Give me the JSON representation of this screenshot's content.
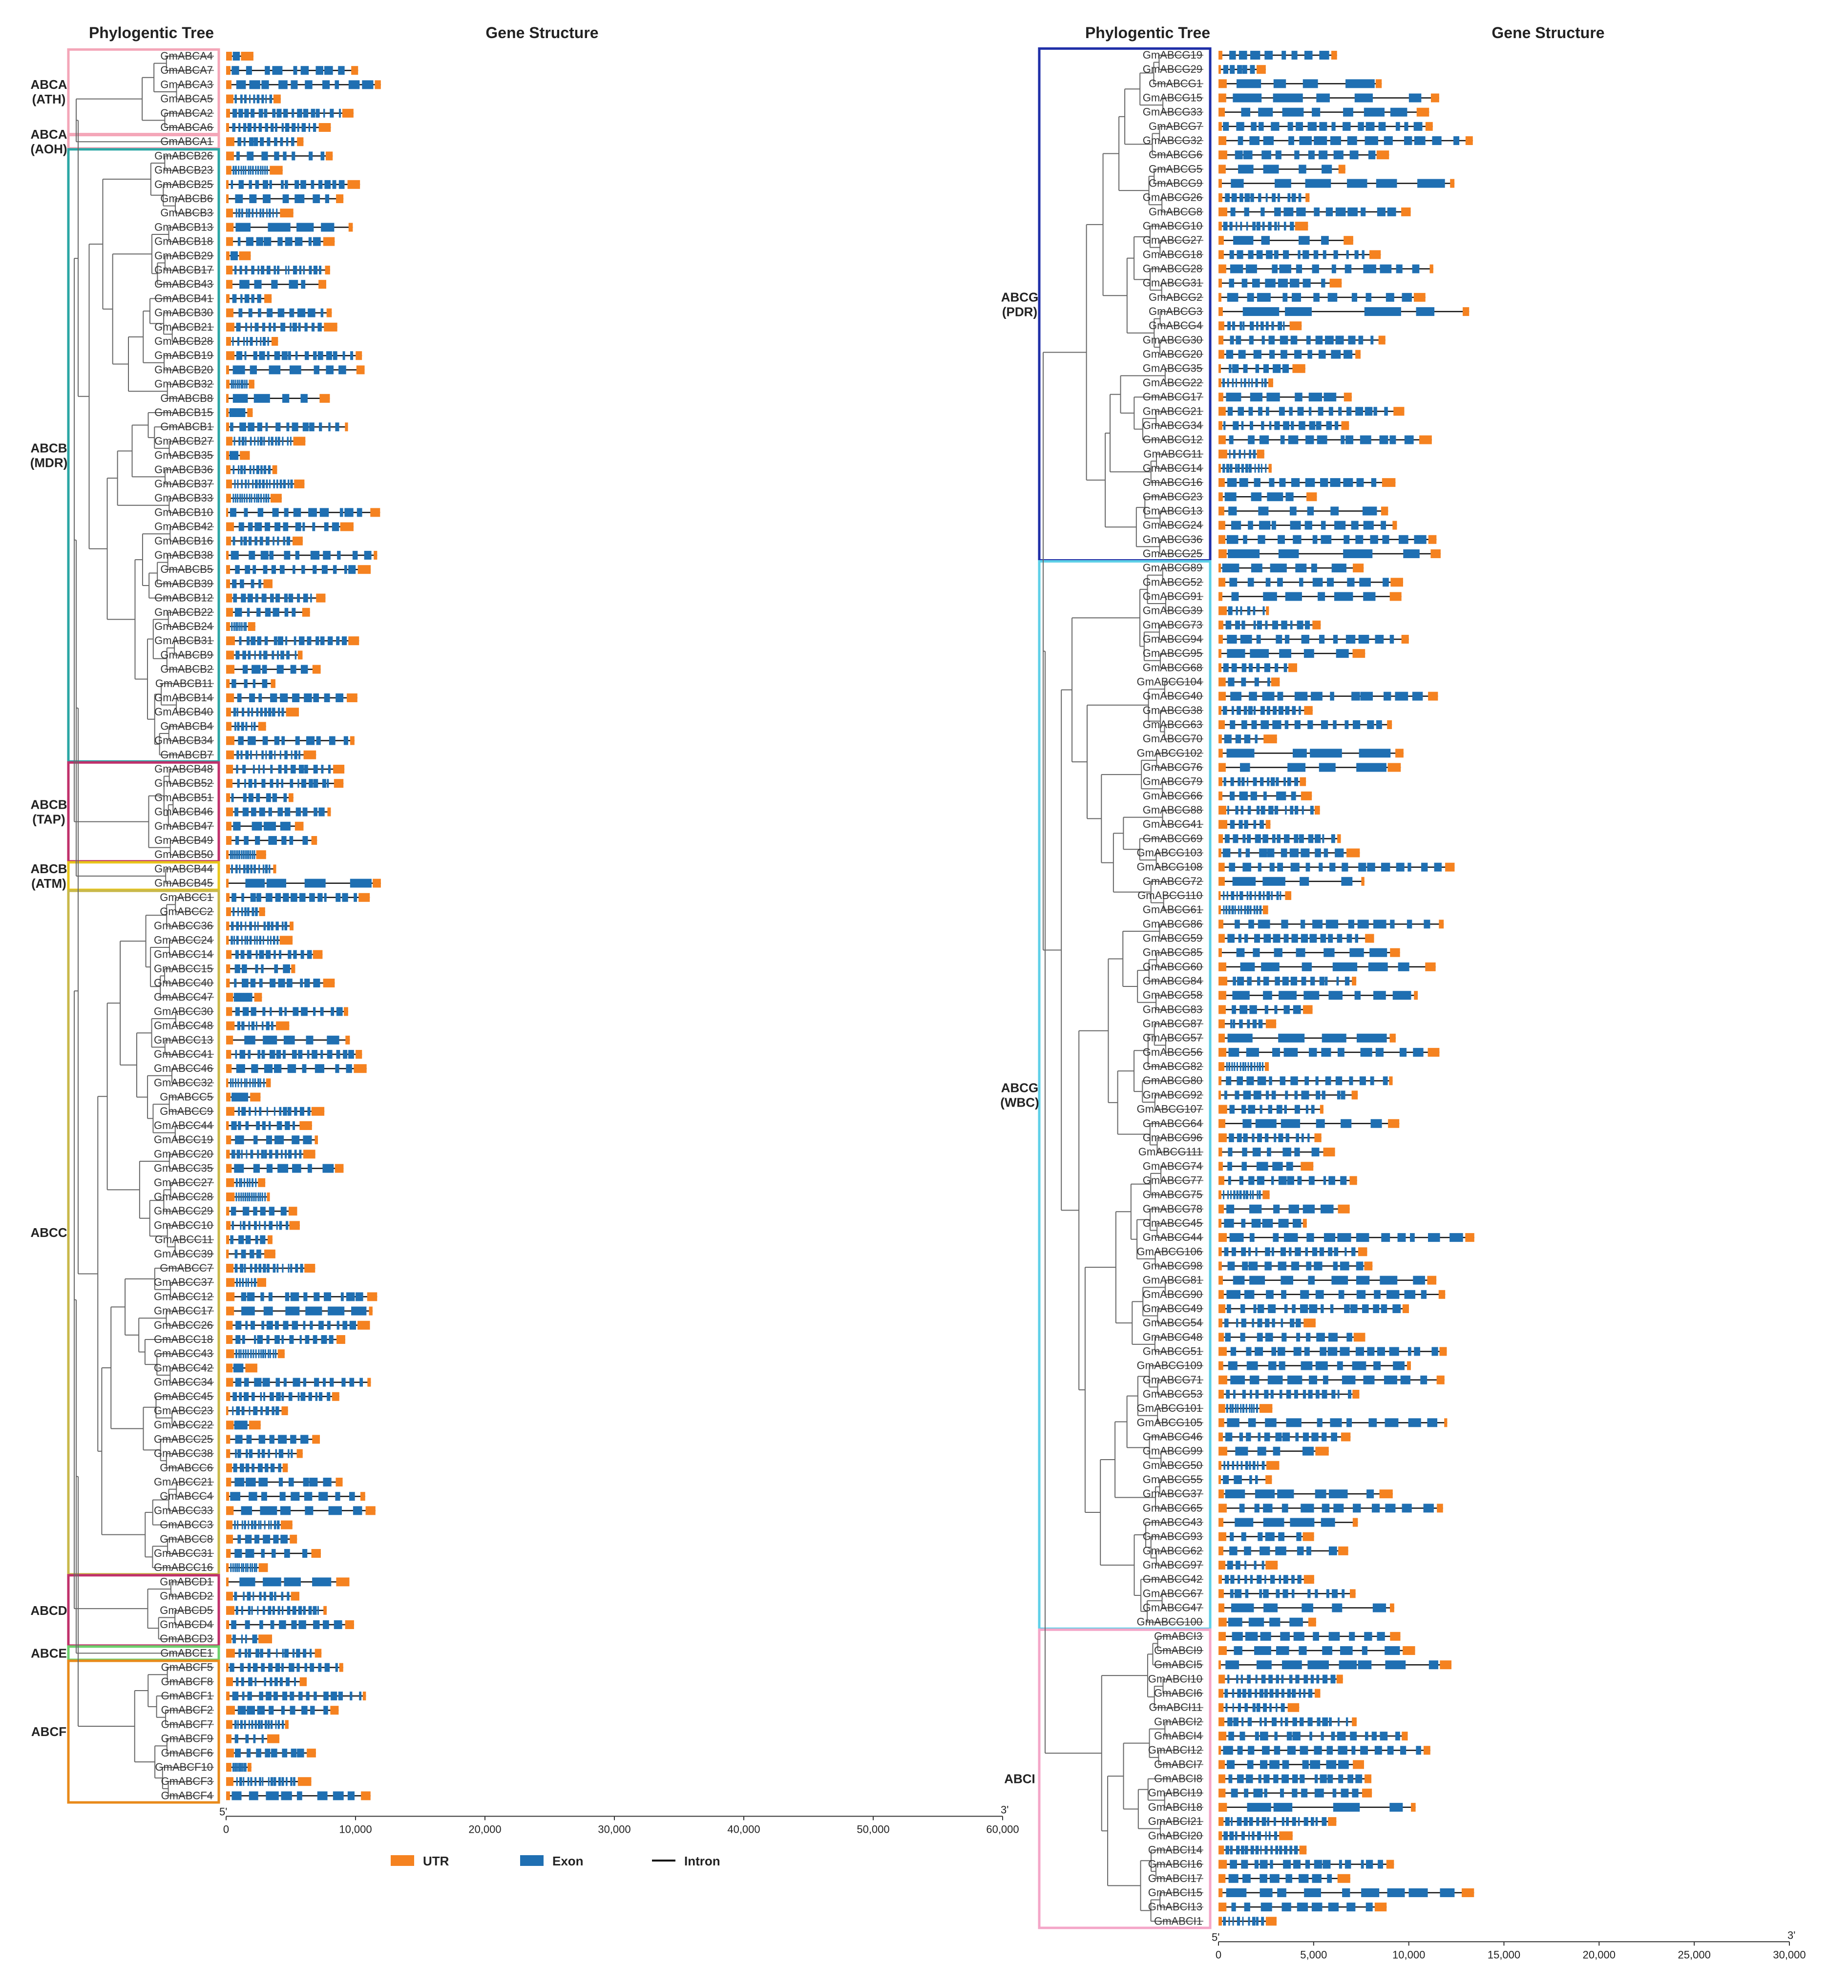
{
  "headers": {
    "left_tree": "Phylogentic Tree",
    "left_struct": "Gene Structure",
    "right_tree": "Phylogentic Tree",
    "right_struct": "Gene Structure"
  },
  "legend": {
    "utr": "UTR",
    "exon": "Exon",
    "intron": "Intron"
  },
  "colors": {
    "utr": "#f58220",
    "exon": "#1f6fb2",
    "intron": "#111111"
  },
  "strand": {
    "five": "5'",
    "three": "3'"
  },
  "chart_data": [
    {
      "type": "gene_structure",
      "title": "Gene Structure",
      "xlim": [
        0,
        60000
      ],
      "ticks": [
        "0",
        "10,000",
        "20,000",
        "30,000",
        "40,000",
        "50,000",
        "60,000"
      ],
      "groups": [
        {
          "label": [
            "ABCA",
            "(ATH)"
          ],
          "color": "#f4a6b8",
          "genes": [
            "GmABCA4",
            "GmABCA7",
            "GmABCA3",
            "GmABCA5",
            "GmABCA2",
            "GmABCA6"
          ]
        },
        {
          "label": [
            "ABCA",
            "(AOH)"
          ],
          "color": "#f4a6b8",
          "genes": [
            "GmABCA1"
          ]
        },
        {
          "label": [
            "ABCB",
            "(MDR)"
          ],
          "color": "#2aa6a4",
          "genes": [
            "GmABCB26",
            "GmABCB23",
            "GmABCB25",
            "GmABCB6",
            "GmABCB3",
            "GmABCB13",
            "GmABCB18",
            "GmABCB29",
            "GmABCB17",
            "GmABCB43",
            "GmABCB41",
            "GmABCB30",
            "GmABCB21",
            "GmABCB28",
            "GmABCB19",
            "GmABCB20",
            "GmABCB32",
            "GmABCB8",
            "GmABCB15",
            "GmABCB1",
            "GmABCB27",
            "GmABCB35",
            "GmABCB36",
            "GmABCB37",
            "GmABCB33",
            "GmABCB10",
            "GmABCB42",
            "GmABCB16",
            "GmABCB38",
            "GmABCB5",
            "GmABCB39",
            "GmABCB12",
            "GmABCB22",
            "GmABCB24",
            "GmABCB31",
            "GmABCB9",
            "GmABCB2",
            "GmABCB11",
            "GmABCB14",
            "GmABCB40",
            "GmABCB4",
            "GmABCB34",
            "GmABCB7"
          ]
        },
        {
          "label": [
            "ABCB",
            "(TAP)"
          ],
          "color": "#c0306b",
          "genes": [
            "GmABCB48",
            "GmABCB52",
            "GmABCB51",
            "GmABCB46",
            "GmABCB47",
            "GmABCB49",
            "GmABCB50"
          ]
        },
        {
          "label": [
            "ABCB",
            "(ATM)"
          ],
          "color": "#e8c51a",
          "genes": [
            "GmABCB44",
            "GmABCB45"
          ]
        },
        {
          "label": [
            "ABCC"
          ],
          "color": "#c9b84a",
          "genes": [
            "GmABCC1",
            "GmABCC2",
            "GmABCC36",
            "GmABCC24",
            "GmABCC14",
            "GmABCC15",
            "GmABCC40",
            "GmABCC47",
            "GmABCC30",
            "GmABCC48",
            "GmABCC13",
            "GmABCC41",
            "GmABCC46",
            "GmABCC32",
            "GmABCC5",
            "GmABCC9",
            "GmABCC44",
            "GmABCC19",
            "GmABCC20",
            "GmABCC35",
            "GmABCC27",
            "GmABCC28",
            "GmABCC29",
            "GmABCC10",
            "GmABCC11",
            "GmABCC39",
            "GmABCC7",
            "GmABCC37",
            "GmABCC12",
            "GmABCC17",
            "GmABCC26",
            "GmABCC18",
            "GmABCC43",
            "GmABCC42",
            "GmABCC34",
            "GmABCC45",
            "GmABCC23",
            "GmABCC22",
            "GmABCC25",
            "GmABCC38",
            "GmABCC6",
            "GmABCC21",
            "GmABCC4",
            "GmABCC33",
            "GmABCC3",
            "GmABCC8",
            "GmABCC31",
            "GmABCC16"
          ]
        },
        {
          "label": [
            "ABCD"
          ],
          "color": "#c0306b",
          "genes": [
            "GmABCD1",
            "GmABCD2",
            "GmABCD5",
            "GmABCD4",
            "GmABCD3"
          ]
        },
        {
          "label": [
            "ABCE"
          ],
          "color": "#6ccf6c",
          "genes": [
            "GmABCE1"
          ]
        },
        {
          "label": [
            "ABCF"
          ],
          "color": "#e88a1a",
          "genes": [
            "GmABCF5",
            "GmABCF8",
            "GmABCF1",
            "GmABCF2",
            "GmABCF7",
            "GmABCF9",
            "GmABCF6",
            "GmABCF10",
            "GmABCF3",
            "GmABCF4"
          ]
        }
      ]
    },
    {
      "type": "gene_structure",
      "title": "Gene Structure",
      "xlim": [
        0,
        30000
      ],
      "ticks": [
        "0",
        "5,000",
        "10,000",
        "15,000",
        "20,000",
        "25,000",
        "30,000"
      ],
      "groups": [
        {
          "label": [
            "ABCG",
            "(PDR)"
          ],
          "color": "#1f2fa8",
          "genes": [
            "GmABCG19",
            "GmABCG29",
            "GmABCG1",
            "GmABCG15",
            "GmABCG33",
            "GmABCG7",
            "GmABCG32",
            "GmABCG6",
            "GmABCG5",
            "GmABCG9",
            "GmABCG26",
            "GmABCG8",
            "GmABCG10",
            "GmABCG27",
            "GmABCG18",
            "GmABCG28",
            "GmABCG31",
            "GmABCG2",
            "GmABCG3",
            "GmABCG4",
            "GmABCG30",
            "GmABCG20",
            "GmABCG35",
            "GmABCG22",
            "GmABCG17",
            "GmABCG21",
            "GmABCG34",
            "GmABCG12",
            "GmABCG11",
            "GmABCG14",
            "GmABCG16",
            "GmABCG23",
            "GmABCG13",
            "GmABCG24",
            "GmABCG36",
            "GmABCG25"
          ]
        },
        {
          "label": [
            "ABCG",
            "(WBC)"
          ],
          "color": "#5fd0e8",
          "genes": [
            "GmABCG89",
            "GmABCG52",
            "GmABCG91",
            "GmABCG39",
            "GmABCG73",
            "GmABCG94",
            "GmABCG95",
            "GmABCG68",
            "GmABCG104",
            "GmABCG40",
            "GmABCG38",
            "GmABCG63",
            "GmABCG70",
            "GmABCG102",
            "GmABCG76",
            "GmABCG79",
            "GmABCG66",
            "GmABCG88",
            "GmABCG41",
            "GmABCG69",
            "GmABCG103",
            "GmABCG108",
            "GmABCG72",
            "GmABCG110",
            "GmABCG61",
            "GmABCG86",
            "GmABCG59",
            "GmABCG85",
            "GmABCG60",
            "GmABCG84",
            "GmABCG58",
            "GmABCG83",
            "GmABCG87",
            "GmABCG57",
            "GmABCG56",
            "GmABCG82",
            "GmABCG80",
            "GmABCG92",
            "GmABCG107",
            "GmABCG64",
            "GmABCG96",
            "GmABCG111",
            "GmABCG74",
            "GmABCG77",
            "GmABCG75",
            "GmABCG78",
            "GmABCG45",
            "GmABCG44",
            "GmABCG106",
            "GmABCG98",
            "GmABCG81",
            "GmABCG90",
            "GmABCG49",
            "GmABCG54",
            "GmABCG48",
            "GmABCG51",
            "GmABCG109",
            "GmABCG71",
            "GmABCG53",
            "GmABCG101",
            "GmABCG105",
            "GmABCG46",
            "GmABCG99",
            "GmABCG50",
            "GmABCG55",
            "GmABCG37",
            "GmABCG65",
            "GmABCG43",
            "GmABCG93",
            "GmABCG62",
            "GmABCG97",
            "GmABCG42",
            "GmABCG67",
            "GmABCG47",
            "GmABCG100"
          ]
        },
        {
          "label": [
            "ABCI"
          ],
          "color": "#f4a6c8",
          "genes": [
            "GmABCI3",
            "GmABCI9",
            "GmABCI5",
            "GmABCI10",
            "GmABCI6",
            "GmABCI11",
            "GmABCI2",
            "GmABCI4",
            "GmABCI12",
            "GmABCI7",
            "GmABCI8",
            "GmABCI19",
            "GmABCI18",
            "GmABCI21",
            "GmABCI20",
            "GmABCI14",
            "GmABCI16",
            "GmABCI17",
            "GmABCI15",
            "GmABCI13",
            "GmABCI1"
          ]
        }
      ]
    }
  ]
}
